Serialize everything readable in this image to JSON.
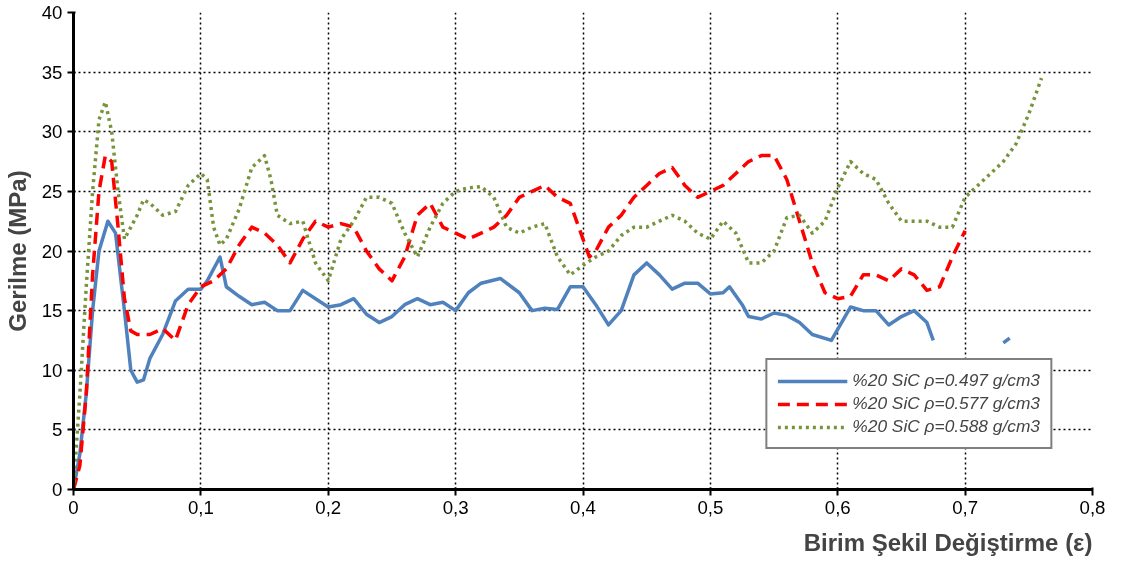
{
  "chart_data": {
    "type": "line",
    "xlabel": "Birim Şekil Değiştirme (ε)",
    "ylabel": "Gerilme (MPa)",
    "xlim": [
      0,
      0.8
    ],
    "ylim": [
      0,
      40
    ],
    "xticks": [
      {
        "value": 0,
        "label": "0"
      },
      {
        "value": 0.1,
        "label": "0,1"
      },
      {
        "value": 0.2,
        "label": "0,2"
      },
      {
        "value": 0.3,
        "label": "0,3"
      },
      {
        "value": 0.4,
        "label": "0,4"
      },
      {
        "value": 0.5,
        "label": "0,5"
      },
      {
        "value": 0.6,
        "label": "0,6"
      },
      {
        "value": 0.7,
        "label": "0,7"
      },
      {
        "value": 0.8,
        "label": "0,8"
      }
    ],
    "yticks": [
      0,
      5,
      10,
      15,
      20,
      25,
      30,
      35,
      40
    ],
    "grid": true,
    "legend": "bottom right",
    "series": [
      {
        "name": "%20 SiC ρ=0.497 g/cm3",
        "color": "#4f81bd",
        "line_style": "solid",
        "x": [
          0,
          0.005,
          0.01,
          0.015,
          0.02,
          0.027,
          0.033,
          0.04,
          0.045,
          0.05,
          0.055,
          0.06,
          0.07,
          0.08,
          0.09,
          0.1,
          0.105,
          0.115,
          0.12,
          0.13,
          0.14,
          0.15,
          0.16,
          0.17,
          0.18,
          0.19,
          0.2,
          0.21,
          0.22,
          0.23,
          0.24,
          0.25,
          0.26,
          0.27,
          0.28,
          0.29,
          0.3,
          0.31,
          0.32,
          0.335,
          0.35,
          0.36,
          0.37,
          0.38,
          0.39,
          0.4,
          0.41,
          0.42,
          0.43,
          0.44,
          0.45,
          0.46,
          0.47,
          0.48,
          0.49,
          0.5,
          0.51,
          0.515,
          0.525,
          0.53,
          0.54,
          0.55,
          0.56,
          0.57,
          0.58,
          0.595,
          0.61,
          0.62,
          0.63,
          0.64,
          0.65,
          0.66,
          0.67,
          0.675,
          0.7,
          0.73,
          0.735
        ],
        "values": [
          0,
          3,
          8,
          15,
          20,
          22.5,
          21.5,
          15,
          10,
          9,
          9.2,
          11,
          13,
          15.8,
          16.8,
          16.8,
          17.5,
          19.5,
          17,
          16.2,
          15.5,
          15.7,
          15,
          15,
          16.7,
          16,
          15.3,
          15.5,
          16,
          14.7,
          14,
          14.5,
          15.5,
          16,
          15.5,
          15.7,
          15,
          16.5,
          17.3,
          17.7,
          16.5,
          15,
          15.2,
          15.1,
          17,
          17,
          15.5,
          13.8,
          15,
          18,
          19,
          18,
          16.8,
          17.3,
          17.3,
          16.4,
          16.5,
          17,
          15.5,
          14.5,
          14.3,
          14.8,
          14.6,
          14,
          13,
          12.5,
          15.3,
          15,
          15,
          13.8,
          14.5,
          15,
          14,
          12.5,
          null,
          12.3,
          12.7
        ]
      },
      {
        "name": "%20 SiC ρ=0.577 g/cm3",
        "color": "#ff0000",
        "line_style": "dashed",
        "x": [
          0,
          0.005,
          0.01,
          0.015,
          0.02,
          0.025,
          0.03,
          0.035,
          0.04,
          0.045,
          0.05,
          0.06,
          0.07,
          0.08,
          0.09,
          0.1,
          0.11,
          0.12,
          0.13,
          0.14,
          0.15,
          0.16,
          0.17,
          0.18,
          0.19,
          0.2,
          0.21,
          0.22,
          0.23,
          0.24,
          0.25,
          0.26,
          0.27,
          0.28,
          0.29,
          0.3,
          0.31,
          0.32,
          0.33,
          0.34,
          0.35,
          0.36,
          0.37,
          0.38,
          0.39,
          0.4,
          0.405,
          0.41,
          0.42,
          0.43,
          0.44,
          0.45,
          0.46,
          0.47,
          0.48,
          0.49,
          0.5,
          0.51,
          0.52,
          0.53,
          0.54,
          0.55,
          0.56,
          0.57,
          0.58,
          0.59,
          0.6,
          0.61,
          0.62,
          0.63,
          0.64,
          0.65,
          0.66,
          0.67,
          0.68,
          0.69,
          0.7
        ],
        "values": [
          0,
          2,
          8,
          18,
          25,
          28,
          27.5,
          22,
          16,
          13.3,
          13,
          13,
          13.5,
          12.5,
          15.5,
          17,
          17.5,
          18.5,
          20.5,
          22,
          21.5,
          20.5,
          19,
          21,
          22.5,
          22,
          22.3,
          22,
          20,
          18.5,
          17.5,
          19.5,
          23,
          24,
          22,
          21.5,
          21,
          21.5,
          22,
          23,
          24.5,
          25,
          25.5,
          24.5,
          24,
          21,
          19.5,
          20,
          22,
          23,
          24.5,
          25.5,
          26.5,
          27,
          25.5,
          24.5,
          25,
          25.5,
          26.5,
          27.5,
          28,
          28,
          26,
          22.5,
          19,
          16.5,
          16,
          16.2,
          18,
          18,
          17.5,
          18.5,
          18,
          16.7,
          17,
          19.5,
          21.7
        ]
      },
      {
        "name": "%20 SiC ρ=0.588 g/cm3",
        "color": "#77933c",
        "line_style": "dotted",
        "x": [
          0,
          0.005,
          0.01,
          0.015,
          0.02,
          0.025,
          0.03,
          0.035,
          0.04,
          0.05,
          0.055,
          0.06,
          0.07,
          0.08,
          0.09,
          0.1,
          0.105,
          0.11,
          0.115,
          0.12,
          0.13,
          0.14,
          0.15,
          0.155,
          0.16,
          0.17,
          0.18,
          0.19,
          0.2,
          0.21,
          0.22,
          0.23,
          0.24,
          0.25,
          0.26,
          0.27,
          0.28,
          0.29,
          0.3,
          0.31,
          0.32,
          0.33,
          0.34,
          0.35,
          0.36,
          0.37,
          0.38,
          0.39,
          0.4,
          0.41,
          0.42,
          0.43,
          0.44,
          0.45,
          0.46,
          0.47,
          0.48,
          0.49,
          0.5,
          0.51,
          0.52,
          0.53,
          0.54,
          0.55,
          0.56,
          0.57,
          0.58,
          0.59,
          0.6,
          0.61,
          0.62,
          0.63,
          0.64,
          0.65,
          0.66,
          0.67,
          0.68,
          0.69,
          0.7,
          0.71,
          0.72,
          0.73,
          0.74,
          0.75,
          0.76
        ],
        "values": [
          0,
          8,
          17,
          25,
          31,
          32.5,
          30,
          25,
          21,
          23,
          24.3,
          24,
          23,
          23.3,
          25.5,
          26.5,
          26,
          22,
          20.5,
          21,
          23.5,
          27,
          28,
          26,
          23,
          22.3,
          22.5,
          19,
          17.5,
          21,
          22.5,
          24.5,
          24.5,
          24,
          21.5,
          19.5,
          22,
          24,
          25,
          25.3,
          25.4,
          24.5,
          22,
          21.5,
          22,
          22.3,
          19.5,
          18,
          18.8,
          19.5,
          20,
          21.3,
          22,
          22,
          22.5,
          23,
          22.5,
          21.5,
          21,
          22.5,
          21.5,
          19,
          19,
          20,
          22.8,
          23,
          21.5,
          22.5,
          25.3,
          27.5,
          26.5,
          26,
          24,
          22.5,
          22.5,
          22.5,
          22,
          22,
          24.5,
          25.5,
          26.5,
          27.5,
          29,
          31.5,
          34.5
        ]
      }
    ]
  }
}
